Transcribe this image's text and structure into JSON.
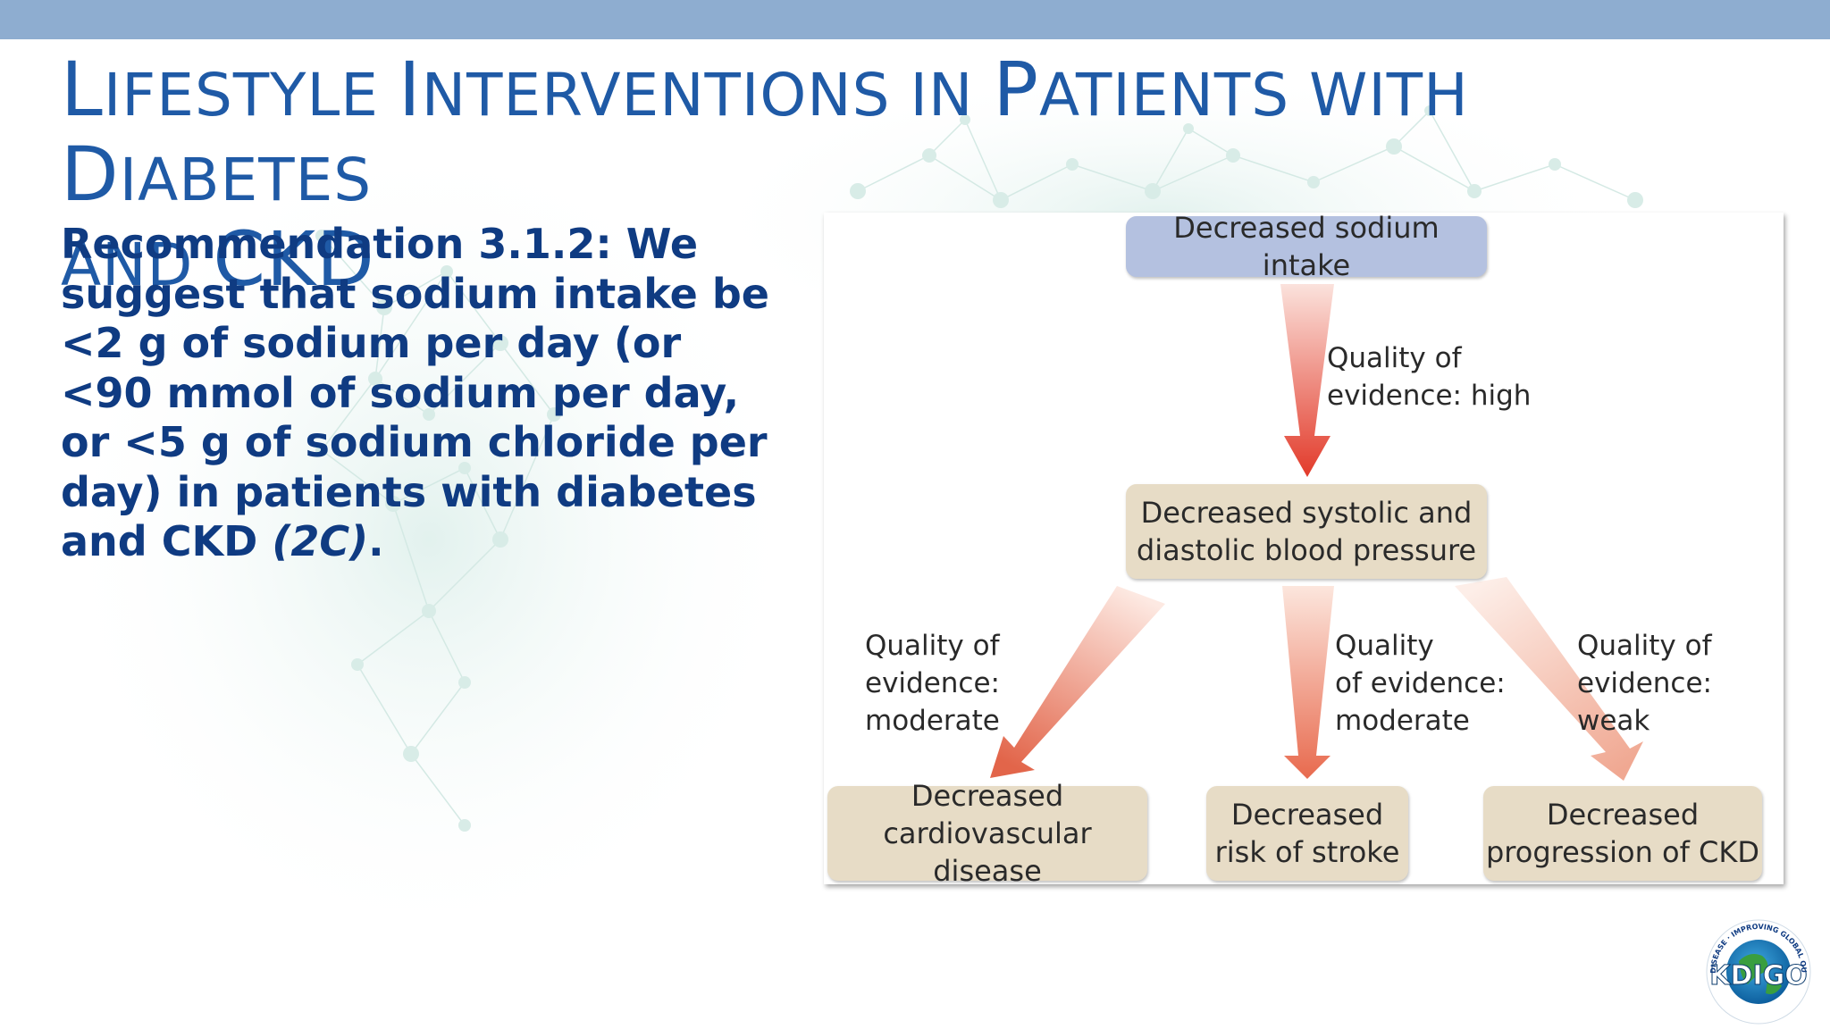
{
  "slide": {
    "title_parts": [
      "L",
      "IFESTYLE ",
      "I",
      "NTERVENTIONS IN ",
      "P",
      "ATIENTS WITH ",
      "D",
      "IABETES",
      "AND ",
      "CKD"
    ],
    "recommendation": {
      "text": "Recommendation 3.1.2: We suggest that sodium intake be <2 g of sodium per day (or <90 mmol of sodium per day, or <5 g of sodium chloride per day) in patients with diabetes and CKD ",
      "grade": "(2C)",
      "end": "."
    },
    "colors": {
      "title": "#1f5aa6",
      "text": "#0f3b82",
      "band": "#8eadd0"
    },
    "logo": {
      "name": "kdigo-logo",
      "letters": "KDIGO",
      "ring_text": "KIDNEY DISEASE · IMPROVING GLOBAL OUTCOMES"
    }
  },
  "diagram": {
    "top_box": "Decreased sodium intake",
    "mid_box": "Decreased systolic and diastolic blood pressure",
    "bottom_boxes": [
      "Decreased cardiovascular disease",
      "Decreased risk of stroke",
      "Decreased progression of CKD"
    ],
    "labels": {
      "high": "Quality of\nevidence: high",
      "left": "Quality of\nevidence:\nmoderate",
      "center": "Quality\nof evidence:\nmoderate",
      "right": "Quality of\nevidence: weak"
    }
  }
}
